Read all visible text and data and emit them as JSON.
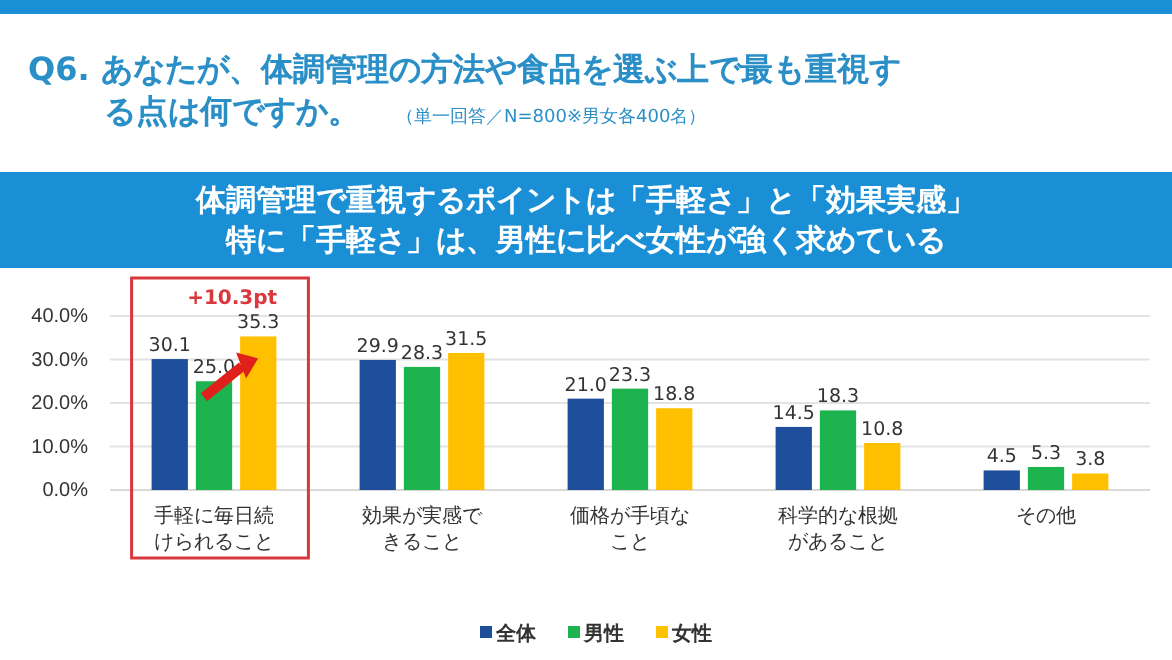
{
  "chart_data": {
    "type": "bar",
    "title": "Q6. あなたが、体調管理の方法や食品を選ぶ上で最も重視する点は何ですか。",
    "subtitle": "体調管理で重視するポイントは「手軽さ」と「効果実感」特に「手軽さ」は、男性に比べ女性が強く求めている",
    "annotations": [
      "（単一回答／N=800※男女各400名）",
      "+10.3pt"
    ],
    "categories": [
      "手軽に毎日続けられること",
      "効果が実感できること",
      "価格が手頃なこと",
      "科学的な根拠があること",
      "その他"
    ],
    "series": [
      {
        "name": "全体",
        "color": "#1f4e9c",
        "values": [
          30.1,
          29.9,
          21.0,
          14.5,
          4.5
        ],
        "value_labels": [
          "30.1",
          "29.9",
          "21.0",
          "14.5",
          "4.5"
        ]
      },
      {
        "name": "男性",
        "color": "#1db34e",
        "values": [
          25.0,
          28.3,
          23.3,
          18.3,
          5.3
        ],
        "value_labels": [
          "25.0",
          "28.3",
          "23.3",
          "18.3",
          "5.3"
        ]
      },
      {
        "name": "女性",
        "color": "#ffc000",
        "values": [
          35.3,
          31.5,
          18.8,
          10.8,
          3.8
        ],
        "value_labels": [
          "35.3",
          "31.5",
          "18.8",
          "10.8",
          "3.8"
        ]
      }
    ],
    "ylim": [
      0,
      40
    ],
    "yticks": [
      {
        "value": 0,
        "label": "0.0%"
      },
      {
        "value": 10,
        "label": "10.0%"
      },
      {
        "value": 20,
        "label": "20.0%"
      },
      {
        "value": 30,
        "label": "30.0%"
      },
      {
        "value": 40,
        "label": "40.0%"
      }
    ],
    "grid": "y",
    "legend": "bottom right"
  }
}
